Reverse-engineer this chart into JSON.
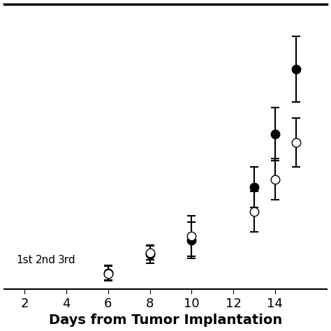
{
  "title": "",
  "xlabel": "Days from Tumor Implantation",
  "ylabel": "",
  "xlim": [
    1,
    16.5
  ],
  "ylim": [
    0,
    700
  ],
  "xticks": [
    2,
    4,
    6,
    8,
    10,
    12,
    14
  ],
  "control_x": [
    6,
    8,
    10,
    13,
    14,
    15
  ],
  "control_y": [
    40,
    85,
    120,
    250,
    380,
    540
  ],
  "control_yerr": [
    18,
    22,
    45,
    50,
    65,
    80
  ],
  "treated_x": [
    6,
    8,
    10,
    13,
    14,
    15
  ],
  "treated_y": [
    38,
    90,
    130,
    190,
    270,
    360
  ],
  "treated_yerr": [
    18,
    18,
    50,
    50,
    50,
    60
  ],
  "arrow_positions": [
    {
      "x": 2,
      "label": "1st"
    },
    {
      "x": 3,
      "label": "2nd"
    },
    {
      "x": 4,
      "label": "3rd"
    }
  ],
  "line_color": "#000000",
  "marker_size": 9,
  "linewidth": 1.8,
  "xlabel_fontsize": 14,
  "xlabel_fontweight": "bold",
  "tick_fontsize": 13,
  "arrow_label_fontsize": 11,
  "background_color": "#ffffff",
  "border_color": "#000000",
  "capsize": 4
}
